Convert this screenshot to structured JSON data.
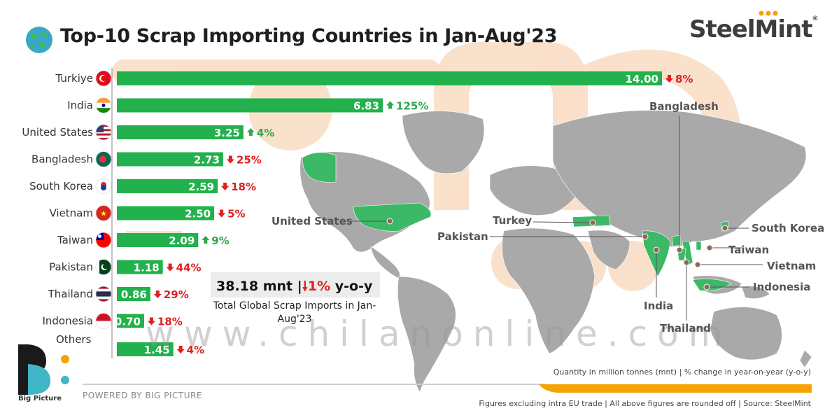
{
  "title": "Top-10 Scrap Importing Countries in Jan-Aug'23",
  "brand": "SteelMint",
  "brand_mark": "®",
  "colors": {
    "bar": "#22b14c",
    "up": "#2fa84f",
    "down": "#e02020",
    "map_land": "#a9a9a9",
    "map_highlight": "#3cb866",
    "accent_orange": "#f5a300"
  },
  "chart_data": {
    "type": "bar",
    "orientation": "horizontal",
    "unit": "mnt",
    "categories": [
      "Turkiye",
      "India",
      "United States",
      "Bangladesh",
      "South Korea",
      "Vietnam",
      "Taiwan",
      "Pakistan",
      "Thailand",
      "Indonesia",
      "Others"
    ],
    "values": [
      14.0,
      6.83,
      3.25,
      2.73,
      2.59,
      2.5,
      2.09,
      1.18,
      0.86,
      0.7,
      1.45
    ],
    "value_labels": [
      "14.00",
      "6.83",
      "3.25",
      "2.73",
      "2.59",
      "2.50",
      "2.09",
      "1.18",
      "0.86",
      "0.70",
      "1.45"
    ],
    "change_labels": [
      "8%",
      "125%",
      "4%",
      "25%",
      "18%",
      "5%",
      "9%",
      "44%",
      "29%",
      "18%",
      "4%"
    ],
    "change_direction": [
      "down",
      "up",
      "up",
      "down",
      "down",
      "down",
      "up",
      "down",
      "down",
      "down",
      "down"
    ],
    "flags": [
      "turkiye-flag-icon",
      "india-flag-icon",
      "us-flag-icon",
      "bangladesh-flag-icon",
      "south-korea-flag-icon",
      "vietnam-flag-icon",
      "taiwan-flag-icon",
      "pakistan-flag-icon",
      "thailand-flag-icon",
      "indonesia-flag-icon",
      ""
    ],
    "xlim": [
      0,
      14.0
    ],
    "title": "Top-10 Scrap Importing Countries in Jan-Aug'23",
    "xlabel": "",
    "ylabel": ""
  },
  "summary": {
    "total": "38.18 mnt",
    "separator": "|",
    "change": "1%",
    "change_suffix": "y-o-y",
    "caption": "Total Global Scrap Imports in Jan-Aug'23"
  },
  "map_labels": [
    "United States",
    "Turkey",
    "Pakistan",
    "Bangladesh",
    "South Korea",
    "Taiwan",
    "Vietnam",
    "Indonesia",
    "India",
    "Thailand"
  ],
  "watermark": "www.chilanonline.com",
  "footer": {
    "units_note": "Quantity in million tonnes (mnt)  |  % change in year-on-year (y-o-y)",
    "notes": "Figures excluding intra EU trade  |  All above figures are rounded off  |  Source: SteelMint",
    "powered": "POWERED BY BIG PICTURE",
    "bp_name": "Big Picture"
  }
}
